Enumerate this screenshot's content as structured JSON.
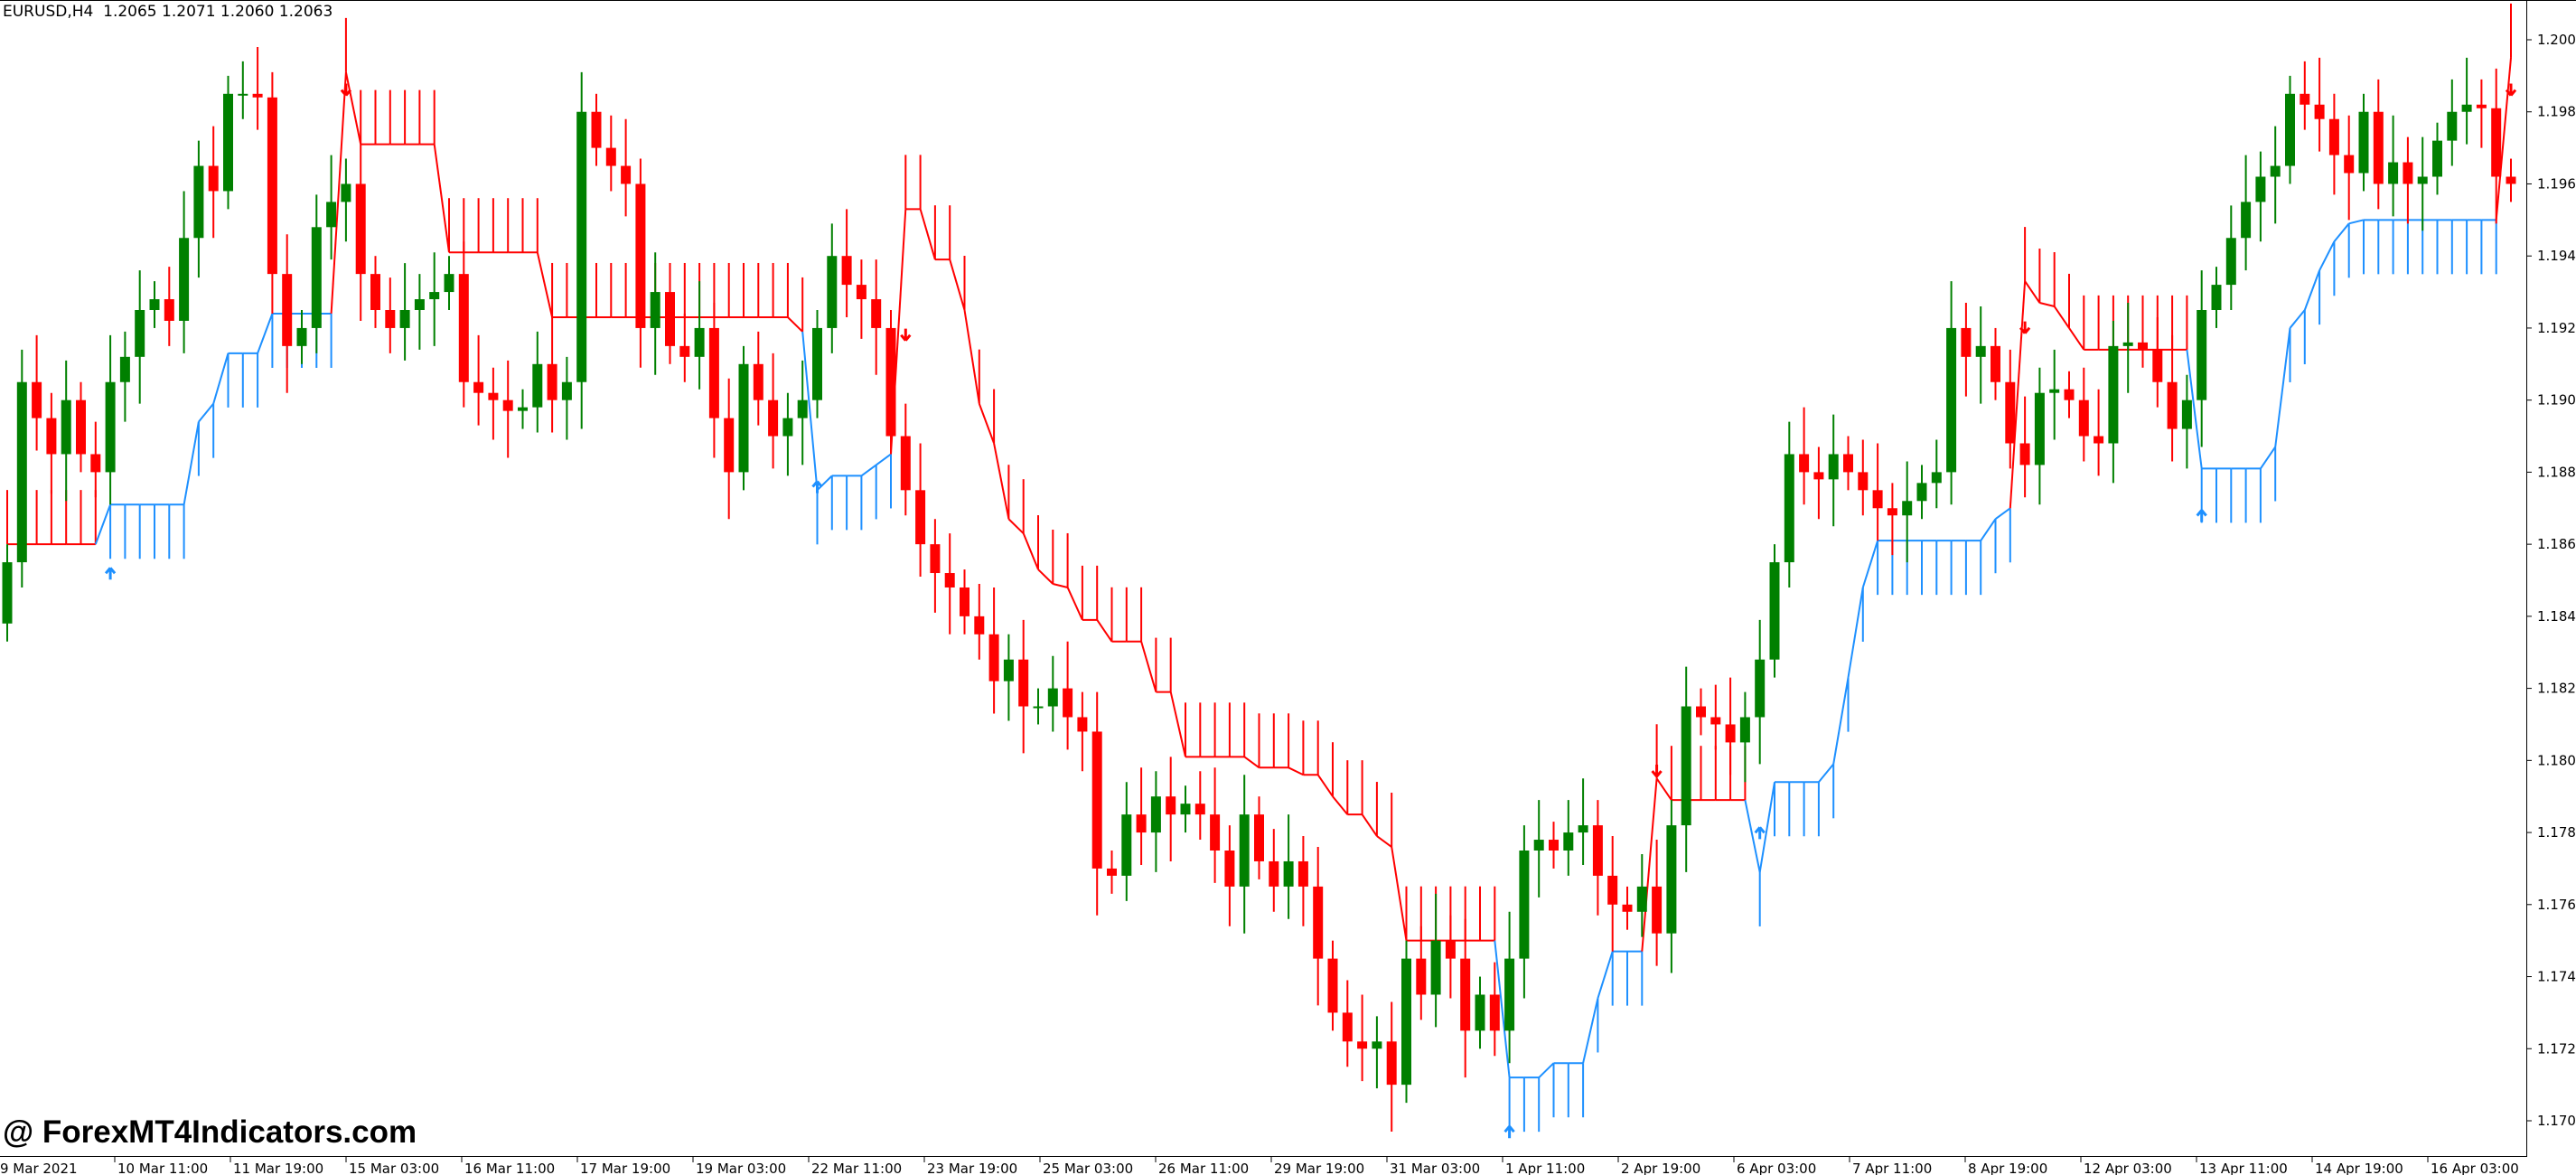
{
  "header": {
    "symbol": "EURUSD,H4",
    "ohlc": "1.2065 1.2071 1.2060 1.2063"
  },
  "watermark": "@ ForexMT4Indicators.com",
  "colors": {
    "bull": "#008000",
    "bear": "#ff0000",
    "trail_up": "#1e90ff",
    "trail_down": "#ff0000",
    "background": "#ffffff",
    "axis": "#000000"
  },
  "chart_data": {
    "type": "candlestick",
    "title": "EURUSD,H4",
    "ylim": [
      1.169,
      1.2008
    ],
    "yticks": [
      "1.2000",
      "1.1980",
      "1.1960",
      "1.1940",
      "1.1920",
      "1.1900",
      "1.1880",
      "1.1860",
      "1.1840",
      "1.1820",
      "1.1800",
      "1.1780",
      "1.1760",
      "1.1740",
      "1.1720",
      "1.1700"
    ],
    "xticks": [
      "9 Mar 2021",
      "10 Mar 11:00",
      "11 Mar 19:00",
      "15 Mar 03:00",
      "16 Mar 11:00",
      "17 Mar 19:00",
      "19 Mar 03:00",
      "22 Mar 11:00",
      "23 Mar 19:00",
      "25 Mar 03:00",
      "26 Mar 11:00",
      "29 Mar 19:00",
      "31 Mar 03:00",
      "1 Apr 11:00",
      "2 Apr 19:00",
      "6 Apr 03:00",
      "7 Apr 11:00",
      "8 Apr 19:00",
      "12 Apr 03:00",
      "13 Apr 11:00",
      "14 Apr 19:00",
      "16 Apr 03:00"
    ],
    "first_open": 1.1838,
    "close": [
      1.1855,
      1.1905,
      1.1895,
      1.1885,
      1.19,
      1.1885,
      1.188,
      1.1905,
      1.1912,
      1.1925,
      1.1928,
      1.1922,
      1.1945,
      1.1965,
      1.1958,
      1.1985,
      1.1985,
      1.1984,
      1.1935,
      1.1915,
      1.192,
      1.1948,
      1.1955,
      1.196,
      1.1935,
      1.1925,
      1.192,
      1.1925,
      1.1928,
      1.193,
      1.1935,
      1.1905,
      1.1902,
      1.19,
      1.1897,
      1.1898,
      1.191,
      1.19,
      1.1905,
      1.198,
      1.197,
      1.1965,
      1.196,
      1.192,
      1.193,
      1.1915,
      1.1912,
      1.192,
      1.1895,
      1.188,
      1.191,
      1.19,
      1.189,
      1.1895,
      1.19,
      1.192,
      1.194,
      1.1932,
      1.1928,
      1.192,
      1.189,
      1.1875,
      1.186,
      1.1852,
      1.1848,
      1.184,
      1.1835,
      1.1822,
      1.1828,
      1.1815,
      1.1815,
      1.182,
      1.1812,
      1.1808,
      1.177,
      1.1768,
      1.1785,
      1.178,
      1.179,
      1.1785,
      1.1788,
      1.1785,
      1.1775,
      1.1765,
      1.1785,
      1.1772,
      1.1765,
      1.1772,
      1.1765,
      1.1745,
      1.173,
      1.1722,
      1.172,
      1.1722,
      1.171,
      1.1745,
      1.1735,
      1.175,
      1.1745,
      1.1725,
      1.1735,
      1.1725,
      1.1745,
      1.1775,
      1.1778,
      1.1775,
      1.178,
      1.1782,
      1.1768,
      1.176,
      1.1758,
      1.1765,
      1.1752,
      1.1782,
      1.1815,
      1.1812,
      1.181,
      1.1805,
      1.1812,
      1.1828,
      1.1855,
      1.1885,
      1.188,
      1.1878,
      1.1885,
      1.188,
      1.1875,
      1.187,
      1.1868,
      1.1872,
      1.1877,
      1.188,
      1.192,
      1.1912,
      1.1915,
      1.1905,
      1.1888,
      1.1882,
      1.1902,
      1.1903,
      1.19,
      1.189,
      1.1888,
      1.1915,
      1.1916,
      1.1914,
      1.1905,
      1.1892,
      1.19,
      1.1925,
      1.1932,
      1.1945,
      1.1955,
      1.1962,
      1.1965,
      1.1985,
      1.1982,
      1.1978,
      1.1968,
      1.1963,
      1.198,
      1.196,
      1.1966,
      1.196,
      1.1962,
      1.1972,
      1.198,
      1.1982,
      1.1981,
      1.1962,
      1.196
    ],
    "signals": {
      "buy_bars": [
        7,
        55,
        102,
        119,
        149
      ],
      "sell_bars": [
        23,
        61,
        112,
        137,
        170
      ]
    },
    "indicator": {
      "initial_trend": "down"
    }
  }
}
